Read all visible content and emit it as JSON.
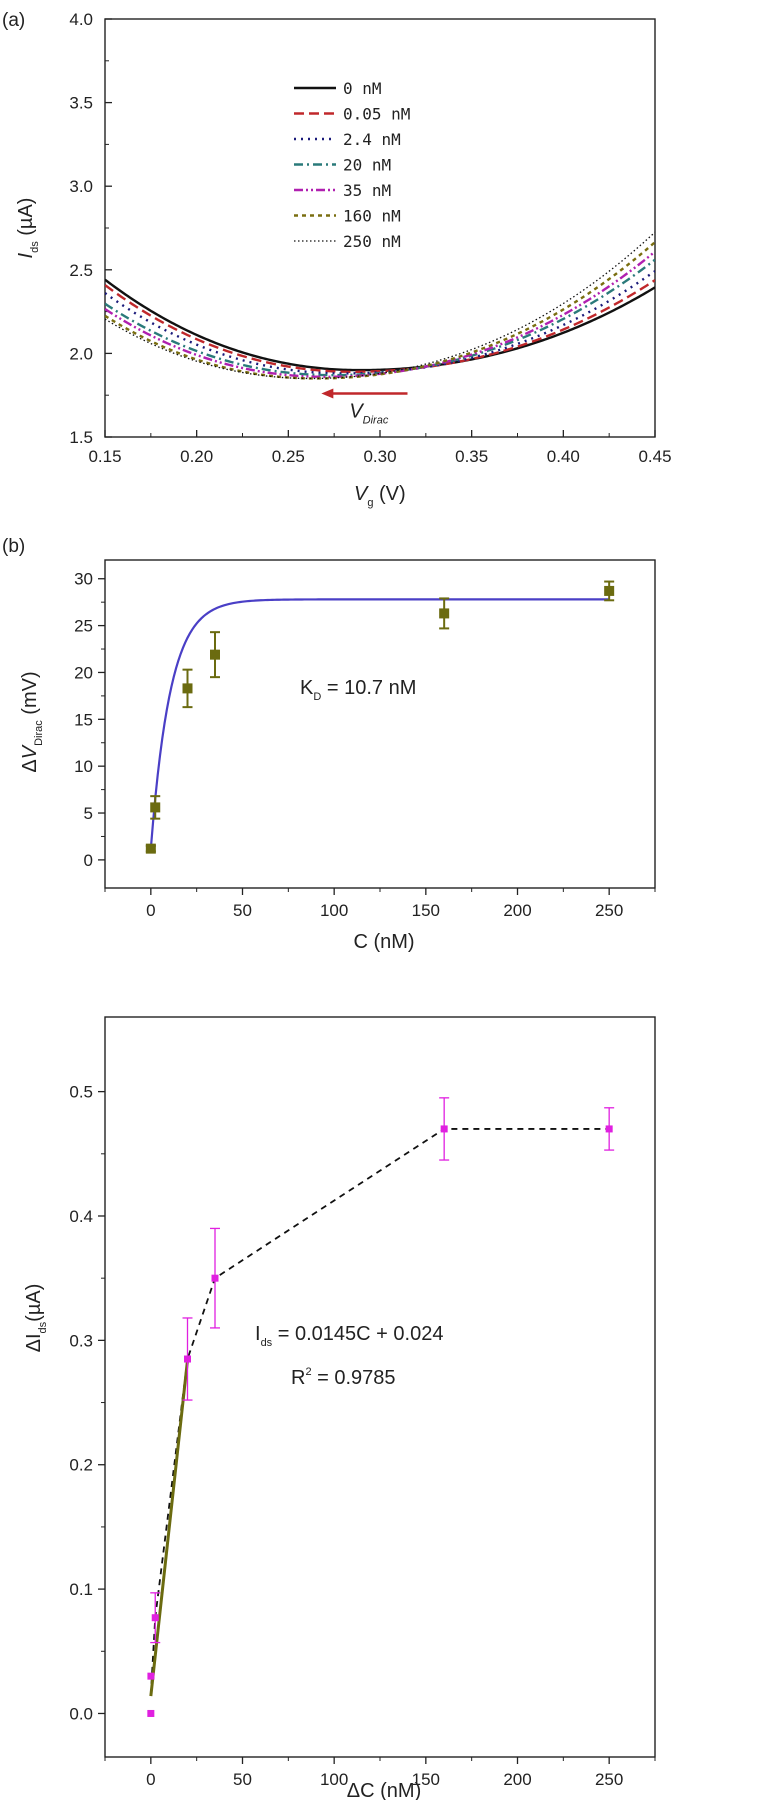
{
  "chart_data": [
    {
      "type": "line",
      "panel_label": "(a)",
      "xlabel": "V",
      "xlabel_sub": "g",
      "xlabel_unit": " (V)",
      "ylabel": "I",
      "ylabel_sub": "ds",
      "ylabel_unit": " (µA)",
      "xlim": [
        0.15,
        0.45
      ],
      "ylim": [
        1.5,
        4.0
      ],
      "xticks": [
        "0.15",
        "0.20",
        "0.25",
        "0.30",
        "0.35",
        "0.40",
        "0.45"
      ],
      "yticks": [
        "1.5",
        "2.0",
        "2.5",
        "3.0",
        "3.5",
        "4.0"
      ],
      "legend_placement": "top-center",
      "annotation": {
        "text": "V",
        "sub": "Dirac",
        "x_start": 0.315,
        "x_end": 0.268,
        "y": 1.76,
        "color": "#c0282b"
      },
      "series": [
        {
          "name": "0 nM",
          "color": "#111111",
          "style": "solid",
          "v0": 0.289,
          "imin": 1.9,
          "kl": 24.0,
          "kr": 16.0
        },
        {
          "name": "0.05 nM",
          "color": "#c0282b",
          "style": "dash",
          "v0": 0.285,
          "imin": 1.89,
          "kl": 24.5,
          "kr": 16.8
        },
        {
          "name": "2.4 nM",
          "color": "#1a1a7a",
          "style": "dot",
          "v0": 0.28,
          "imin": 1.88,
          "kl": 24.6,
          "kr": 17.6
        },
        {
          "name": "20 nM",
          "color": "#2a7a7a",
          "style": "dashdot",
          "v0": 0.274,
          "imin": 1.87,
          "kl": 24.2,
          "kr": 18.4
        },
        {
          "name": "35 nM",
          "color": "#b020b0",
          "style": "dashdotdot",
          "v0": 0.27,
          "imin": 1.86,
          "kl": 24.6,
          "kr": 19.0
        },
        {
          "name": "160 nM",
          "color": "#7a6e10",
          "style": "shortdash",
          "v0": 0.265,
          "imin": 1.85,
          "kl": 24.9,
          "kr": 19.5
        },
        {
          "name": "250 nM",
          "color": "#111111",
          "style": "finedot",
          "v0": 0.262,
          "imin": 1.85,
          "kl": 25.0,
          "kr": 20.2
        }
      ]
    },
    {
      "type": "scatter",
      "panel_label": "(b)",
      "xlabel": "C (nM)",
      "ylabel": "V",
      "ylabel_prefix": "Δ",
      "ylabel_sub": "Dirac",
      "ylabel_unit": " (mV)",
      "xlim": [
        -25,
        275
      ],
      "ylim": [
        -3,
        32
      ],
      "xticks": [
        0,
        50,
        100,
        150,
        200,
        250
      ],
      "yticks": [
        0,
        5,
        10,
        15,
        20,
        25,
        30
      ],
      "points": {
        "x": [
          0,
          2.4,
          20,
          35,
          160,
          250
        ],
        "y": [
          1.2,
          5.6,
          18.3,
          21.9,
          26.3,
          28.7
        ],
        "err": [
          0.3,
          1.2,
          2.0,
          2.4,
          1.6,
          1.0
        ],
        "color": "#6b6b10"
      },
      "fit": {
        "ymax": 27.8,
        "kd": 10.7,
        "color": "#4a3fc6"
      },
      "annotation": {
        "text": "K",
        "sub": "D",
        "rest": " = 10.7 nM"
      }
    },
    {
      "type": "scatter",
      "panel_label": "",
      "xlabel": "ΔC (nM)",
      "ylabel": "ΔI",
      "ylabel_sub": "ds",
      "ylabel_unit": "(µA)",
      "xlim": [
        -25,
        275
      ],
      "ylim": [
        -0.035,
        0.56
      ],
      "xticks": [
        0,
        50,
        100,
        150,
        200,
        250
      ],
      "yticks": [
        "0.0",
        "0.1",
        "0.2",
        "0.3",
        "0.4",
        "0.5"
      ],
      "points": {
        "x": [
          0,
          0.05,
          2.4,
          20,
          35,
          160,
          250
        ],
        "y": [
          0.0,
          0.03,
          0.077,
          0.285,
          0.35,
          0.47,
          0.47
        ],
        "err": [
          0,
          0,
          0.02,
          0.033,
          0.04,
          0.025,
          0.017
        ],
        "color": "#e020e0"
      },
      "fit_line": {
        "slope": 0.0145,
        "intercept": 0.024,
        "x_range": [
          0,
          20
        ],
        "color": "#6b6b10"
      },
      "dashed_path": true,
      "annotation_eq": {
        "prefix": "I",
        "sub": "ds",
        "rest": " = 0.0145C + 0.024"
      },
      "annotation_r2": {
        "text": "R",
        "sup": "2",
        "rest": " = 0.9785"
      }
    }
  ]
}
